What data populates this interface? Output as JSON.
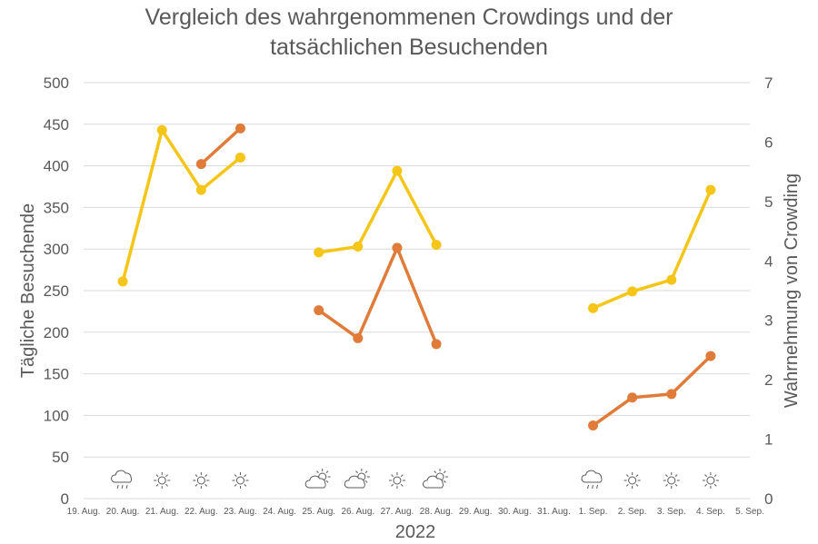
{
  "chart_data": {
    "type": "line",
    "title": "Vergleich des wahrgenommenen Crowdings und der tatsächlichen Besuchenden",
    "title_lines": [
      "Vergleich des wahrgenommenen Crowdings und der",
      "tatsächlichen Besuchenden"
    ],
    "xlabel": "2022",
    "ylabel_left": "Tägliche Besuchende",
    "ylabel_right": "Wahrnehmung von Crowding",
    "ylim_left": [
      0,
      500
    ],
    "ylim_right": [
      0,
      7
    ],
    "yticks_left": [
      "0",
      "50",
      "100",
      "150",
      "200",
      "250",
      "300",
      "350",
      "400",
      "450",
      "500"
    ],
    "yticks_right": [
      "0",
      "1",
      "2",
      "3",
      "4",
      "5",
      "6",
      "7"
    ],
    "categories": [
      "19. Aug.",
      "20. Aug.",
      "21. Aug.",
      "22. Aug.",
      "23. Aug.",
      "24. Aug.",
      "25. Aug.",
      "26. Aug.",
      "27. Aug.",
      "28. Aug.",
      "29. Aug.",
      "30. Aug.",
      "31. Aug.",
      "1. Sep.",
      "2. Sep.",
      "3. Sep.",
      "4. Sep.",
      "5. Sep."
    ],
    "grid": true,
    "legend": "none",
    "series": [
      {
        "axis": "left",
        "color": "#F5C518",
        "values": [
          null,
          261,
          443,
          371,
          410,
          null,
          296,
          303,
          394,
          305,
          null,
          null,
          null,
          229,
          249,
          263,
          371,
          null
        ]
      },
      {
        "axis": "right",
        "color": "#E07B39",
        "values": [
          null,
          null,
          null,
          5.63,
          6.23,
          null,
          3.17,
          2.7,
          4.22,
          2.6,
          null,
          null,
          null,
          1.23,
          1.7,
          1.76,
          2.4,
          null
        ]
      }
    ],
    "weather_icons": [
      null,
      "rain-cloud-icon",
      "sun-icon",
      "sun-icon",
      "sun-icon",
      null,
      "sun-cloud-icon",
      "sun-cloud-icon",
      "sun-icon",
      "sun-cloud-icon",
      null,
      null,
      null,
      "rain-cloud-icon",
      "sun-icon",
      "sun-icon",
      "sun-icon",
      null
    ]
  }
}
